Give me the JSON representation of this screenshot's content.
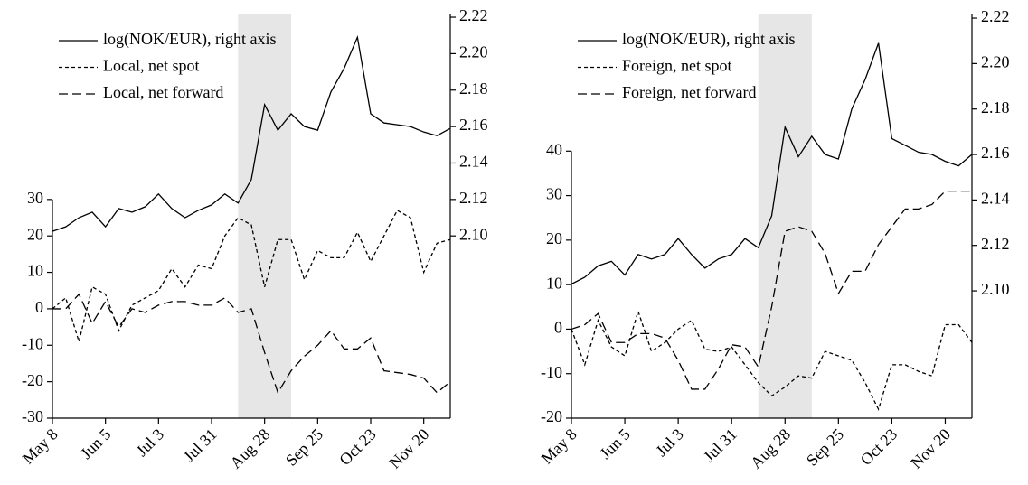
{
  "chart_data": [
    {
      "type": "line",
      "legend": "upper left",
      "shade": [
        14,
        18
      ],
      "shade_color": "#e6e6e6",
      "categories": [
        "May 8",
        null,
        null,
        null,
        "Jun 5",
        null,
        null,
        null,
        "Jul 3",
        null,
        null,
        null,
        "Jul 31",
        null,
        null,
        null,
        "Aug 28",
        null,
        null,
        null,
        "Sep 25",
        null,
        null,
        null,
        "Oct 23",
        null,
        null,
        null,
        "Nov 20",
        null,
        null
      ],
      "ylim": [
        -30,
        81
      ],
      "yticks": [
        -30,
        -20,
        -10,
        0,
        10,
        20,
        30
      ],
      "y2lim": [
        2.0,
        2.222
      ],
      "y2ticks": [
        {
          "value": 2.1,
          "label": "2.10"
        },
        2.12,
        2.14,
        2.16,
        2.18,
        {
          "value": 2.2,
          "label": "2.20"
        },
        2.22
      ],
      "series": [
        {
          "name": "log(NOK/EUR), right axis",
          "axis": "y2",
          "color": "#000000",
          "style": "solid",
          "values": [
            2.1025,
            2.105,
            2.11,
            2.113,
            2.105,
            2.115,
            2.113,
            2.116,
            2.123,
            2.115,
            2.11,
            2.114,
            2.117,
            2.123,
            2.118,
            2.131,
            2.172,
            2.158,
            2.167,
            2.16,
            2.158,
            2.179,
            2.192,
            2.209,
            2.167,
            2.162,
            2.161,
            2.16,
            2.157,
            2.155,
            2.159
          ]
        },
        {
          "name": "Local, net spot",
          "color": "#000000",
          "style": "short-dash",
          "values": [
            0,
            3,
            -9,
            6,
            4,
            -6,
            1,
            3,
            5,
            11,
            6,
            12,
            11,
            20,
            25,
            23,
            6,
            19,
            19,
            8,
            16,
            14,
            14,
            21,
            13,
            20,
            27,
            25,
            10,
            18,
            19
          ]
        },
        {
          "name": "Local, net forward",
          "color": "#000000",
          "style": "long-dash",
          "values": [
            0,
            0,
            4,
            -4,
            2,
            -5,
            0,
            -1,
            1,
            2,
            2,
            1,
            1,
            3,
            -1,
            0,
            -12,
            -23,
            -17,
            -13,
            -10,
            -6,
            -11,
            -11,
            -8,
            -17,
            -17.5,
            -18,
            -19,
            -23,
            -20
          ]
        }
      ]
    },
    {
      "type": "line",
      "legend": "upper left",
      "shade": [
        14,
        18
      ],
      "shade_color": "#e6e6e6",
      "categories": [
        "May 8",
        null,
        null,
        null,
        "Jun 5",
        null,
        null,
        null,
        "Jul 3",
        null,
        null,
        null,
        "Jul 31",
        null,
        null,
        null,
        "Aug 28",
        null,
        null,
        null,
        "Sep 25",
        null,
        null,
        null,
        "Oct 23",
        null,
        null,
        null,
        "Nov 20",
        null,
        null
      ],
      "ylim": [
        -20,
        70.9
      ],
      "yticks": [
        -20,
        -10,
        0,
        10,
        20,
        30,
        40
      ],
      "y2lim": [
        2.044,
        2.222
      ],
      "y2ticks": [
        {
          "value": 2.1,
          "label": "2.10"
        },
        2.12,
        2.14,
        2.16,
        2.18,
        {
          "value": 2.2,
          "label": "2.20"
        },
        2.22
      ],
      "series": [
        {
          "name": "log(NOK/EUR), right axis",
          "axis": "y2",
          "color": "#000000",
          "style": "solid",
          "values": [
            2.103,
            2.106,
            2.111,
            2.113,
            2.107,
            2.116,
            2.114,
            2.116,
            2.123,
            2.116,
            2.11,
            2.114,
            2.116,
            2.123,
            2.119,
            2.133,
            2.172,
            2.159,
            2.168,
            2.16,
            2.158,
            2.18,
            2.193,
            2.209,
            2.167,
            2.164,
            2.161,
            2.16,
            2.157,
            2.155,
            2.16
          ]
        },
        {
          "name": "Foreign, net spot",
          "color": "#000000",
          "style": "short-dash",
          "values": [
            0,
            -8,
            2,
            -4,
            -6,
            4,
            -5,
            -3,
            0,
            2,
            -4.5,
            -5,
            -4,
            -8,
            -12,
            -15,
            -13,
            -10.5,
            -11,
            -5,
            -6,
            -7,
            -12,
            -18,
            -8,
            -8,
            -9.5,
            -10.5,
            1,
            1,
            -3
          ]
        },
        {
          "name": "Foreign, net forward",
          "color": "#000000",
          "style": "long-dash",
          "values": [
            0,
            1,
            3.5,
            -3,
            -3,
            -1,
            -1,
            -2,
            -7,
            -13.5,
            -13.5,
            -9,
            -3.5,
            -4,
            -8.5,
            5,
            22,
            23,
            22,
            17,
            8,
            13,
            13,
            19,
            23,
            27,
            27,
            28,
            31,
            31,
            31
          ]
        }
      ]
    }
  ]
}
